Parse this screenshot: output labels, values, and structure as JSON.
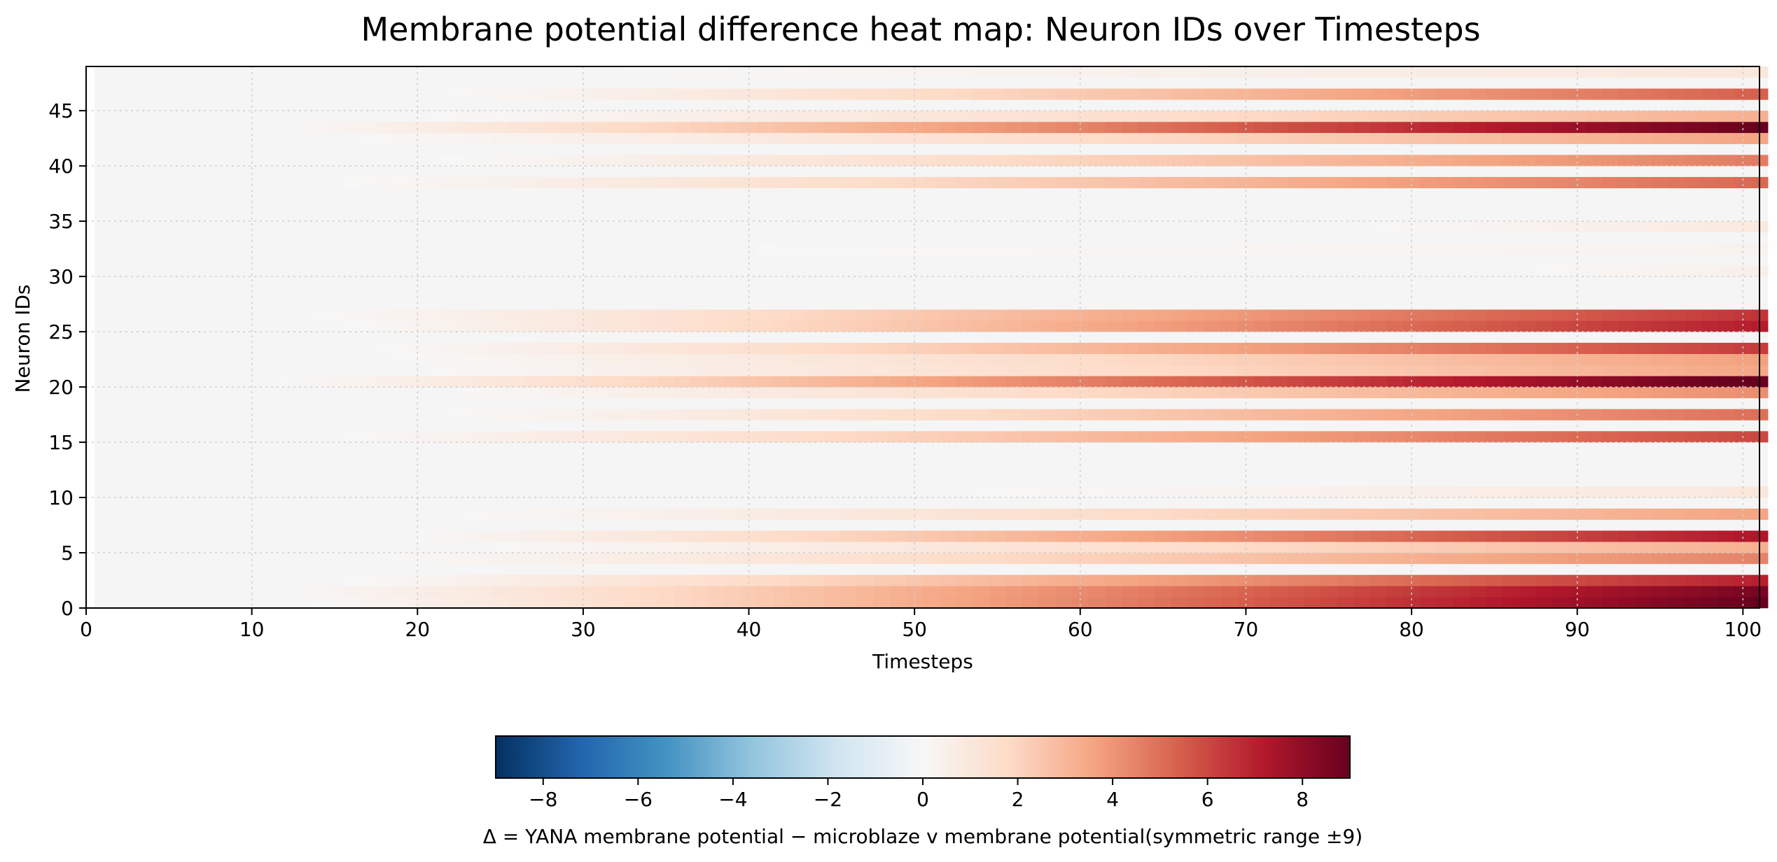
{
  "chart_data": {
    "type": "heatmap",
    "title": "Membrane potential difference heat map: Neuron IDs over Timesteps",
    "xlabel": "Timesteps",
    "ylabel": "Neuron IDs",
    "xlim": [
      0,
      101
    ],
    "ylim": [
      0,
      49
    ],
    "xticks": [
      0,
      10,
      20,
      30,
      40,
      50,
      60,
      70,
      80,
      90,
      100
    ],
    "yticks": [
      0,
      5,
      10,
      15,
      20,
      25,
      30,
      35,
      40,
      45
    ],
    "grid": true,
    "timesteps": 101,
    "neurons": 49,
    "colormap": "RdBu_r",
    "colorbar": {
      "label": "Δ = YANA membrane potential − microblaze v membrane potential(symmetric range ±9)",
      "range": [
        -9,
        9
      ],
      "ticks": [
        -8,
        -6,
        -4,
        -2,
        0,
        2,
        4,
        6,
        8
      ],
      "orientation": "horizontal",
      "placement": "bottom"
    },
    "colors": {
      "neutral": "#f5f5f5",
      "low": "#053061",
      "high": "#67001f"
    },
    "rows": [
      {
        "neuron": 0,
        "start": 12,
        "final": 9.0
      },
      {
        "neuron": 1,
        "start": 10,
        "final": 8.6
      },
      {
        "neuron": 2,
        "start": 14,
        "final": 7.0
      },
      {
        "neuron": 4,
        "start": 16,
        "final": 4.5
      },
      {
        "neuron": 5,
        "start": 22,
        "final": 3.2
      },
      {
        "neuron": 6,
        "start": 18,
        "final": 7.3
      },
      {
        "neuron": 8,
        "start": 20,
        "final": 3.6
      },
      {
        "neuron": 10,
        "start": 50,
        "final": 1.0
      },
      {
        "neuron": 15,
        "start": 14,
        "final": 6.0
      },
      {
        "neuron": 17,
        "start": 20,
        "final": 5.0
      },
      {
        "neuron": 19,
        "start": 20,
        "final": 4.2
      },
      {
        "neuron": 20,
        "start": 10,
        "final": 9.2
      },
      {
        "neuron": 21,
        "start": 18,
        "final": 3.5
      },
      {
        "neuron": 22,
        "start": 16,
        "final": 3.7
      },
      {
        "neuron": 23,
        "start": 16,
        "final": 6.3
      },
      {
        "neuron": 25,
        "start": 14,
        "final": 7.1
      },
      {
        "neuron": 26,
        "start": 12,
        "final": 6.5
      },
      {
        "neuron": 30,
        "start": 85,
        "final": 0.5
      },
      {
        "neuron": 32,
        "start": 30,
        "final": 0.3
      },
      {
        "neuron": 34,
        "start": 75,
        "final": 0.9
      },
      {
        "neuron": 38,
        "start": 14,
        "final": 5.2
      },
      {
        "neuron": 40,
        "start": 20,
        "final": 4.7
      },
      {
        "neuron": 42,
        "start": 14,
        "final": 3.6
      },
      {
        "neuron": 43,
        "start": 10,
        "final": 9.0
      },
      {
        "neuron": 44,
        "start": 18,
        "final": 3.2
      },
      {
        "neuron": 46,
        "start": 20,
        "final": 5.4
      },
      {
        "neuron": 48,
        "start": 28,
        "final": 1.0
      }
    ]
  }
}
